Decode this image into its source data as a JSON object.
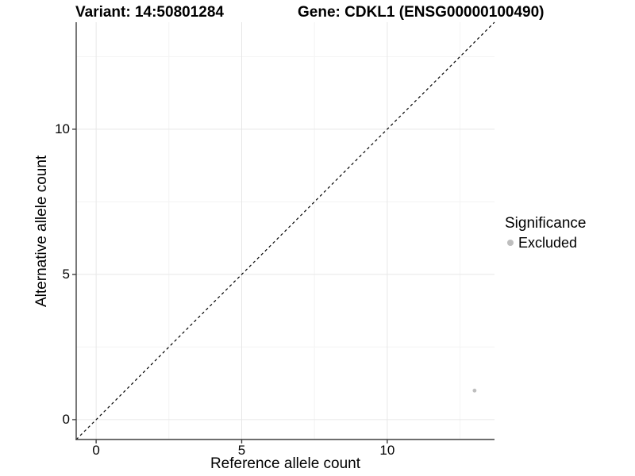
{
  "title": {
    "variant": "Variant: 14:50801284",
    "gene": "Gene: CDKL1 (ENSG00000100490)"
  },
  "x_axis": {
    "label": "Reference allele count",
    "ticks": [
      "0",
      "5",
      "10"
    ]
  },
  "y_axis": {
    "label": "Alternative allele count",
    "ticks": [
      "0",
      "5",
      "10"
    ]
  },
  "legend": {
    "title": "Significance",
    "items": [
      {
        "label": "Excluded",
        "color": "#bebebe",
        "marker": "circle"
      }
    ]
  },
  "chart_data": {
    "type": "scatter",
    "title": "Variant: 14:50801284    Gene: CDKL1 (ENSG00000100490)",
    "xlabel": "Reference allele count",
    "ylabel": "Alternative allele count",
    "xlim": [
      -0.685,
      13.685
    ],
    "ylim": [
      -0.685,
      13.685
    ],
    "major_ticks": [
      0,
      5,
      10
    ],
    "minor_gridlines": [
      2.5,
      7.5,
      12.5
    ],
    "grid": true,
    "legend_position": "right",
    "series": [
      {
        "name": "Excluded",
        "color": "#bebebe",
        "points": [
          {
            "x": 13,
            "y": 1
          }
        ]
      }
    ],
    "reference_line": {
      "type": "identity",
      "style": "dashed",
      "color": "#000000"
    },
    "colors": {
      "axis_line": "#3f3f3f",
      "major_grid": "#e7e7e7",
      "minor_grid": "#f3f3f3"
    }
  }
}
